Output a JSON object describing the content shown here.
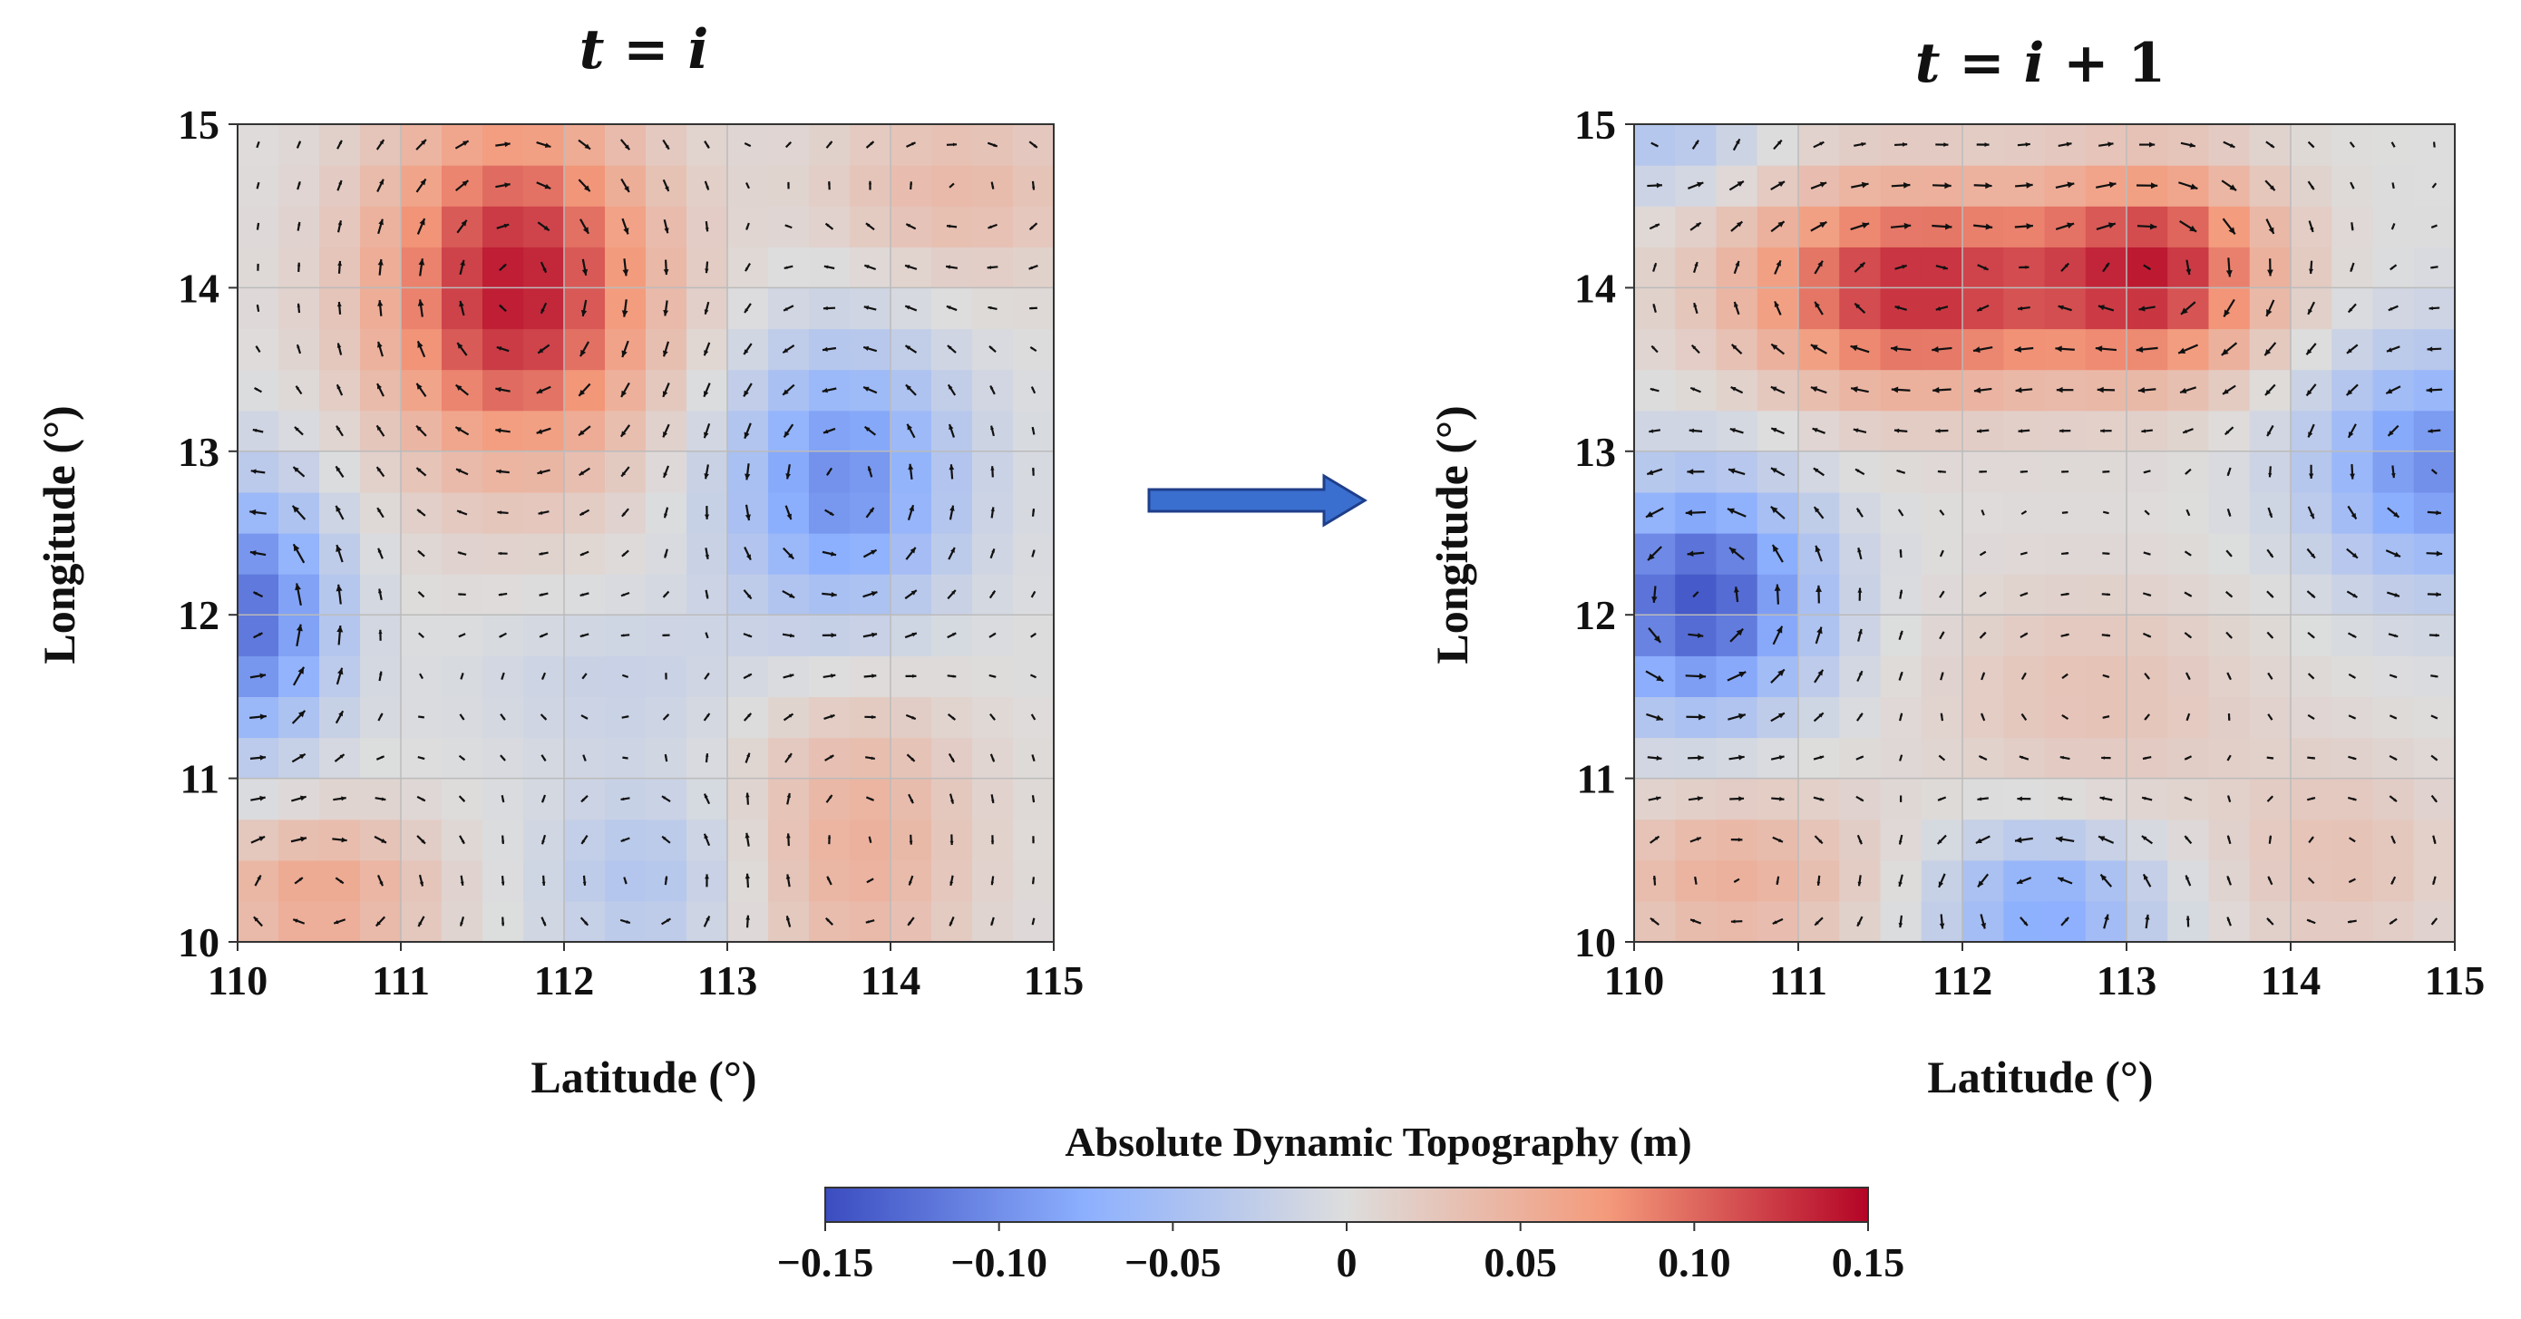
{
  "chart_data": {
    "type": "heatmap",
    "variable": "Absolute Dynamic Topography (m)",
    "colormap": "coolwarm",
    "colormap_colors": [
      "#3b4cc0",
      "#8db0fe",
      "#dddddd",
      "#f49a7b",
      "#b40426"
    ],
    "grid_color": "#bbbbbb",
    "arrow_color": "#111111",
    "transition_arrow_color": "#3a6fd0",
    "panels": [
      {
        "title_var": "t",
        "title_eq": " = ",
        "title_rhs": "i",
        "title_suffix": "",
        "xlabel": "Latitude (°)",
        "ylabel": "Longitude (°)",
        "xlim": [
          110,
          115
        ],
        "ylim": [
          10,
          15
        ],
        "xticks": [
          "110",
          "111",
          "112",
          "113",
          "114",
          "115"
        ],
        "yticks": [
          "10",
          "11",
          "12",
          "13",
          "14",
          "15"
        ],
        "features": [
          {
            "kind": "anticyclonic eddy",
            "center": [
              111.7,
              14.0
            ],
            "sigma": [
              0.6,
              0.75
            ],
            "adt": 0.14
          },
          {
            "kind": "cyclonic eddy",
            "center": [
              113.7,
              12.8
            ],
            "sigma": [
              0.5,
              0.6
            ],
            "adt": -0.1
          },
          {
            "kind": "cyclonic eddy",
            "center": [
              110.1,
              12.0
            ],
            "sigma": [
              0.35,
              0.55
            ],
            "adt": -0.12
          },
          {
            "kind": "warm anomaly",
            "center": [
              110.5,
              10.3
            ],
            "sigma": [
              0.5,
              0.35
            ],
            "adt": 0.06
          },
          {
            "kind": "warm anomaly",
            "center": [
              113.8,
              10.6
            ],
            "sigma": [
              0.5,
              0.7
            ],
            "adt": 0.05
          },
          {
            "kind": "warm anomaly",
            "center": [
              114.4,
              14.6
            ],
            "sigma": [
              0.6,
              0.4
            ],
            "adt": 0.04
          },
          {
            "kind": "cold anomaly",
            "center": [
              112.5,
              10.4
            ],
            "sigma": [
              0.45,
              0.4
            ],
            "adt": -0.04
          },
          {
            "kind": "cold anomaly",
            "center": [
              112.3,
              11.6
            ],
            "sigma": [
              0.6,
              0.35
            ],
            "adt": -0.02
          }
        ]
      },
      {
        "title_var": "t",
        "title_eq": " = ",
        "title_rhs": "i",
        "title_suffix": " + 1",
        "xlabel": "Latitude (°)",
        "ylabel": "Longitude (°)",
        "xlim": [
          110,
          115
        ],
        "ylim": [
          10,
          15
        ],
        "xticks": [
          "110",
          "111",
          "112",
          "113",
          "114",
          "115"
        ],
        "yticks": [
          "10",
          "11",
          "12",
          "13",
          "14",
          "15"
        ],
        "features": [
          {
            "kind": "anticyclonic eddy",
            "center": [
              111.7,
              14.0
            ],
            "sigma": [
              0.75,
              0.45
            ],
            "adt": 0.13
          },
          {
            "kind": "anticyclonic eddy",
            "center": [
              113.2,
              14.1
            ],
            "sigma": [
              0.5,
              0.45
            ],
            "adt": 0.12
          },
          {
            "kind": "cyclonic eddy",
            "center": [
              110.4,
              12.1
            ],
            "sigma": [
              0.5,
              0.5
            ],
            "adt": -0.14
          },
          {
            "kind": "cyclonic eddy",
            "center": [
              114.9,
              12.9
            ],
            "sigma": [
              0.55,
              0.5
            ],
            "adt": -0.1
          },
          {
            "kind": "cold anomaly",
            "center": [
              112.5,
              10.2
            ],
            "sigma": [
              0.45,
              0.35
            ],
            "adt": -0.08
          },
          {
            "kind": "cold anomaly",
            "center": [
              110.2,
              14.9
            ],
            "sigma": [
              0.4,
              0.25
            ],
            "adt": -0.04
          },
          {
            "kind": "warm anomaly",
            "center": [
              110.6,
              10.4
            ],
            "sigma": [
              0.6,
              0.4
            ],
            "adt": 0.05
          },
          {
            "kind": "warm anomaly",
            "center": [
              114.3,
              10.5
            ],
            "sigma": [
              0.5,
              0.45
            ],
            "adt": 0.03
          },
          {
            "kind": "warm anomaly",
            "center": [
              112.8,
              11.5
            ],
            "sigma": [
              0.7,
              0.5
            ],
            "adt": 0.03
          }
        ]
      }
    ],
    "colorbar": {
      "label": "Absolute Dynamic Topography (m)",
      "min": -0.15,
      "max": 0.15,
      "ticks": [
        {
          "value": -0.15,
          "label": "−0.15"
        },
        {
          "value": -0.1,
          "label": "−0.10"
        },
        {
          "value": -0.05,
          "label": "−0.05"
        },
        {
          "value": 0,
          "label": "0"
        },
        {
          "value": 0.05,
          "label": "0.05"
        },
        {
          "value": 0.1,
          "label": "0.10"
        },
        {
          "value": 0.15,
          "label": "0.15"
        }
      ]
    }
  }
}
